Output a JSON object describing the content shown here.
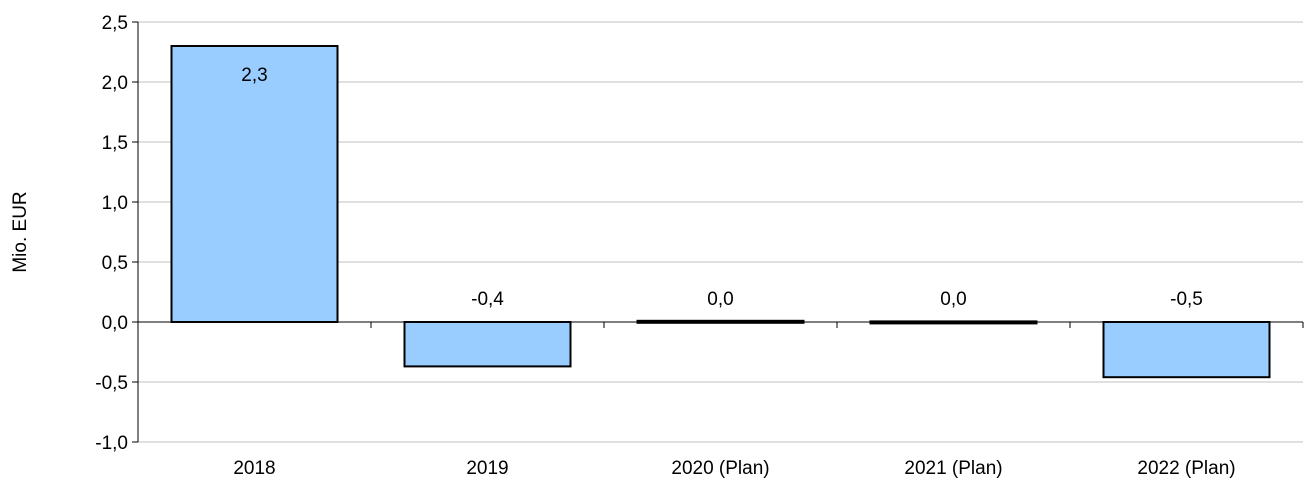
{
  "chart_data": {
    "type": "bar",
    "categories": [
      "2018",
      "2019",
      "2020 (Plan)",
      "2021 (Plan)",
      "2022 (Plan)"
    ],
    "values": [
      2.3,
      -0.37,
      0.01,
      0.005,
      -0.46
    ],
    "data_labels": [
      "2,3",
      "-0,4",
      "0,0",
      "0,0",
      "-0,5"
    ],
    "ylabel": "Mio. EUR",
    "ylim": [
      -1.0,
      2.5
    ],
    "yticks": [
      2.5,
      2.0,
      1.5,
      1.0,
      0.5,
      0.0,
      -0.5,
      -1.0
    ],
    "ytick_labels": [
      "2,5",
      "2,0",
      "1,5",
      "1,0",
      "0,5",
      "0,0",
      "-0,5",
      "-1,0"
    ],
    "grid": true,
    "bar_color": "#99ccff",
    "bar_edge_color": "#000000",
    "grid_color": "#c0c0c0"
  }
}
